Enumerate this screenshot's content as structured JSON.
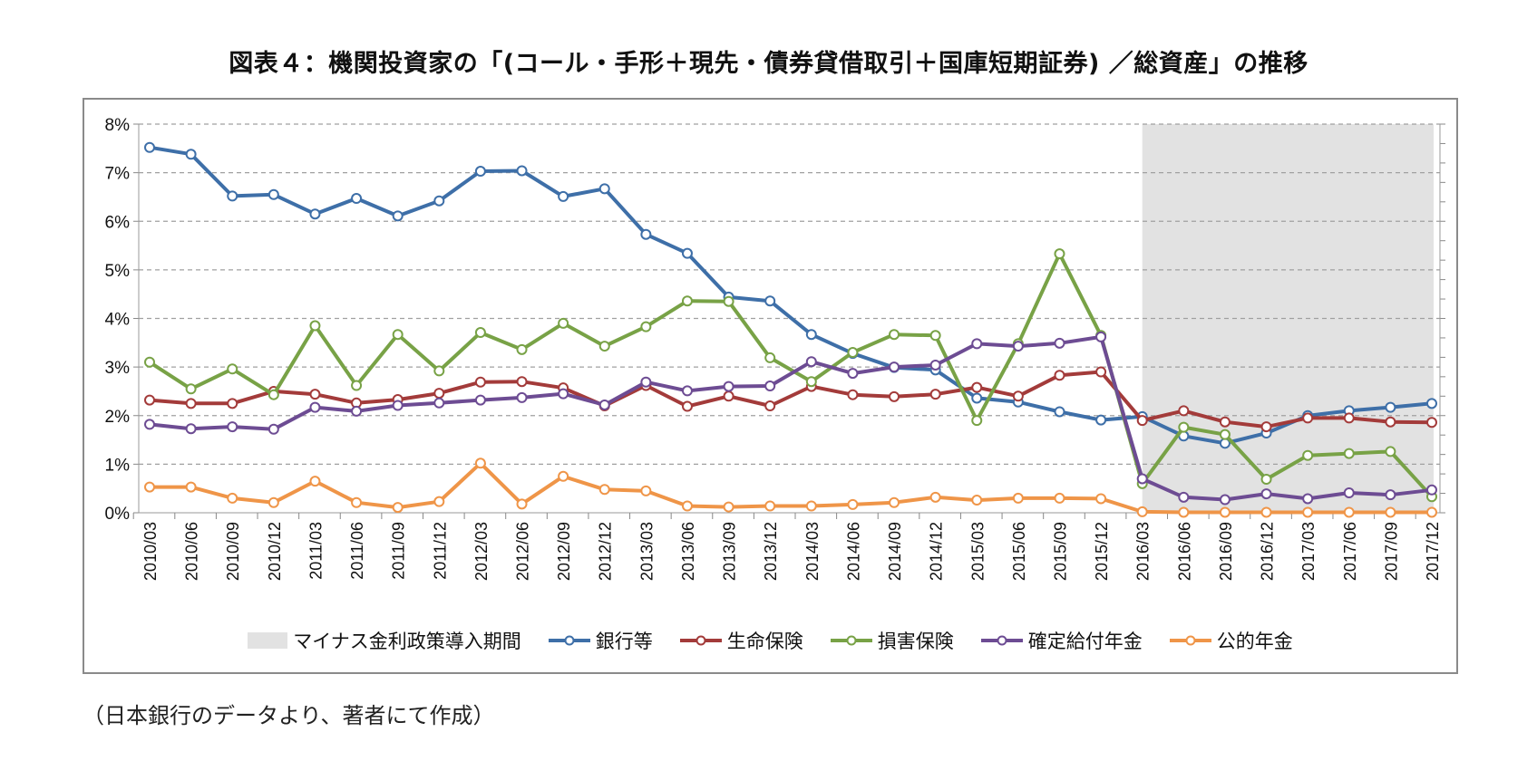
{
  "title": "図表４：機関投資家の「(コール・手形＋現先・債券貸借取引＋国庫短期証券) ／総資産」の推移",
  "source": "（日本銀行のデータより、著者にて作成）",
  "chart_data": {
    "type": "line",
    "title": "図表４：機関投資家の「(コール・手形＋現先・債券貸借取引＋国庫短期証券) ／総資産」の推移",
    "xlabel": "",
    "ylabel": "",
    "ylim": [
      0,
      8
    ],
    "yticks": [
      "0%",
      "1%",
      "2%",
      "3%",
      "4%",
      "5%",
      "6%",
      "7%",
      "8%"
    ],
    "grid": "horizontal dashed",
    "legend": "bottom",
    "categories": [
      "2010/03",
      "2010/06",
      "2010/09",
      "2010/12",
      "2011/03",
      "2011/06",
      "2011/09",
      "2011/12",
      "2012/03",
      "2012/06",
      "2012/09",
      "2012/12",
      "2013/03",
      "2013/06",
      "2013/09",
      "2013/12",
      "2014/03",
      "2014/06",
      "2014/09",
      "2014/12",
      "2015/03",
      "2015/06",
      "2015/09",
      "2015/12",
      "2016/03",
      "2016/06",
      "2016/09",
      "2016/12",
      "2017/03",
      "2017/06",
      "2017/09",
      "2017/12"
    ],
    "shaded_period": {
      "name": "マイナス金利政策導入期間",
      "from": "2016/03",
      "to": "2017/12",
      "color": "#e2e2e2"
    },
    "series": [
      {
        "name": "銀行等",
        "color": "#3e6fa8",
        "values": [
          7.52,
          7.38,
          6.52,
          6.55,
          6.15,
          6.47,
          6.11,
          6.42,
          7.03,
          7.04,
          6.51,
          6.67,
          5.73,
          5.34,
          4.44,
          4.36,
          3.67,
          3.28,
          2.99,
          2.94,
          2.36,
          2.28,
          2.08,
          1.91,
          1.98,
          1.58,
          1.43,
          1.64,
          2.0,
          2.1,
          2.17,
          2.25
        ]
      },
      {
        "name": "生命保険",
        "color": "#a33b3a",
        "values": [
          2.32,
          2.25,
          2.25,
          2.5,
          2.44,
          2.26,
          2.33,
          2.46,
          2.69,
          2.7,
          2.57,
          2.2,
          2.62,
          2.19,
          2.4,
          2.2,
          2.6,
          2.43,
          2.39,
          2.44,
          2.58,
          2.4,
          2.83,
          2.9,
          1.9,
          2.1,
          1.87,
          1.77,
          1.95,
          1.95,
          1.87,
          1.86
        ]
      },
      {
        "name": "損害保険",
        "color": "#78a246",
        "values": [
          3.1,
          2.55,
          2.96,
          2.43,
          3.85,
          2.62,
          3.67,
          2.92,
          3.71,
          3.36,
          3.9,
          3.43,
          3.83,
          4.36,
          4.35,
          3.19,
          2.7,
          3.3,
          3.67,
          3.65,
          1.9,
          3.48,
          5.33,
          3.65,
          0.6,
          1.76,
          1.61,
          0.69,
          1.18,
          1.22,
          1.26,
          0.33
        ]
      },
      {
        "name": "確定給付年金",
        "color": "#6d4c93",
        "values": [
          1.82,
          1.73,
          1.77,
          1.72,
          2.17,
          2.09,
          2.21,
          2.26,
          2.32,
          2.37,
          2.45,
          2.22,
          2.69,
          2.51,
          2.6,
          2.61,
          3.11,
          2.87,
          3.0,
          3.04,
          3.48,
          3.43,
          3.49,
          3.62,
          0.7,
          0.32,
          0.27,
          0.39,
          0.29,
          0.41,
          0.37,
          0.47
        ]
      },
      {
        "name": "公的年金",
        "color": "#ef9548",
        "values": [
          0.53,
          0.53,
          0.3,
          0.21,
          0.65,
          0.21,
          0.11,
          0.23,
          1.02,
          0.18,
          0.75,
          0.48,
          0.45,
          0.14,
          0.12,
          0.14,
          0.14,
          0.17,
          0.21,
          0.32,
          0.26,
          0.3,
          0.3,
          0.29,
          0.02,
          0.01,
          0.01,
          0.01,
          0.01,
          0.01,
          0.01,
          0.01
        ]
      }
    ]
  }
}
